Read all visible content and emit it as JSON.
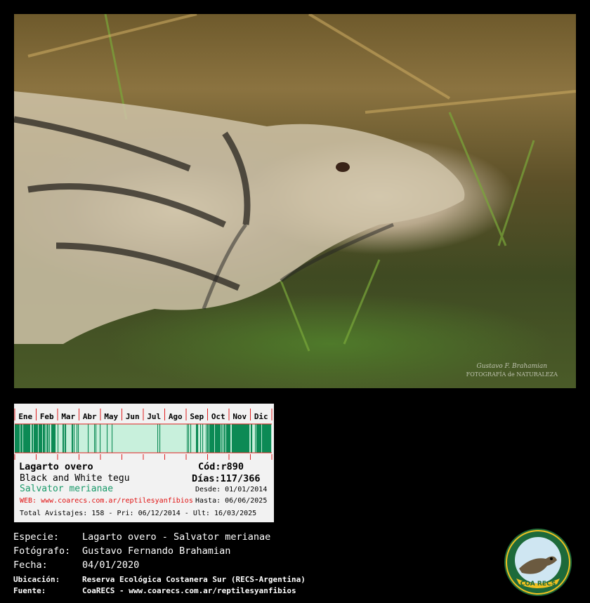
{
  "photo": {
    "subject": "Lagarto overo",
    "watermark_signature": "Gustavo F. Brahamian",
    "watermark_text": "FOTOGRAFÍA de NATURALEZA"
  },
  "card": {
    "months": [
      "Ene",
      "Feb",
      "Mar",
      "Abr",
      "May",
      "Jun",
      "Jul",
      "Ago",
      "Sep",
      "Oct",
      "Nov",
      "Dic"
    ],
    "sighting_density": [
      0.75,
      0.6,
      0.35,
      0.08,
      0.05,
      0.0,
      0.04,
      0.0,
      0.3,
      0.8,
      0.7,
      0.75
    ],
    "colors": {
      "bar": "#0c8a55",
      "bar_bg": "#c8f0dc",
      "grid": "#e02020",
      "scientific": "#1a9a6a",
      "web": "#e01010"
    },
    "common_name": "Lagarto overo",
    "english_name": "Black and White tegu",
    "scientific_name": "Salvator merianae",
    "web": "WEB: www.coarecs.com.ar/reptilesyanfibios",
    "code": "Cód:r890",
    "days": "Días:117/366",
    "from": "Desde: 01/01/2014",
    "to": "Hasta: 06/06/2025",
    "totals": "Total Avistajes: 158 - Pri: 06/12/2014 - Ult: 16/03/2025"
  },
  "footer": {
    "species_label": "Especie:",
    "species": "Lagarto overo - Salvator merianae",
    "photographer_label": "Fotógrafo:",
    "photographer": "Gustavo Fernando Brahamian",
    "date_label": "Fecha:",
    "date": "04/01/2020",
    "location_label": "Ubicación:",
    "location": "Reserva Ecológica Costanera Sur (RECS-Argentina)",
    "source_label": "Fuente:",
    "source": "CoaRECS - www.coarecs.com.ar/reptilesyanfibios"
  },
  "logo": {
    "text": "COA RECS"
  }
}
